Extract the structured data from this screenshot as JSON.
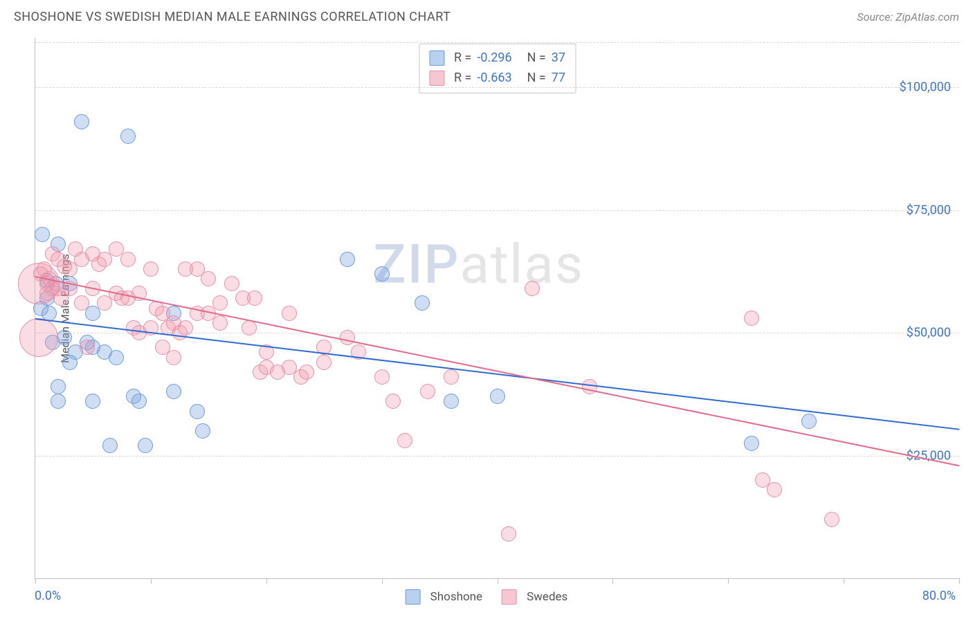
{
  "header": {
    "title": "SHOSHONE VS SWEDISH MEDIAN MALE EARNINGS CORRELATION CHART",
    "source": "Source: ZipAtlas.com"
  },
  "chart": {
    "type": "scatter",
    "ylabel": "Median Male Earnings",
    "xlim": [
      0,
      80
    ],
    "ylim": [
      0,
      110000
    ],
    "x_tick_positions": [
      0,
      10,
      20,
      30,
      40,
      50,
      60,
      70,
      80
    ],
    "x_min_label": "0.0%",
    "x_max_label": "80.0%",
    "y_gridlines": [
      25000,
      50000,
      75000,
      100000
    ],
    "y_labels": [
      "$25,000",
      "$50,000",
      "$75,000",
      "$100,000"
    ],
    "background_color": "#ffffff",
    "grid_color": "#d8d8d8",
    "axis_color": "#c0c0c0",
    "value_text_color": "#3b73d1",
    "point_radius": 11,
    "series": [
      {
        "name": "Shoshone",
        "fill_color": "rgba(120,160,220,0.35)",
        "stroke_color": "#6a9be0",
        "swatch_fill": "#b9d0ef",
        "swatch_border": "#6a9be0",
        "trend_color": "#2f69d2",
        "trend": {
          "x1": 0,
          "y1": 53000,
          "x2": 80,
          "y2": 30500
        },
        "R": "-0.296",
        "N": "37",
        "points": [
          [
            0.5,
            55000
          ],
          [
            0.6,
            70000
          ],
          [
            1,
            60500
          ],
          [
            1,
            57000
          ],
          [
            1.2,
            54000
          ],
          [
            1.5,
            48000
          ],
          [
            1.8,
            60000
          ],
          [
            2,
            68000
          ],
          [
            2,
            39000
          ],
          [
            2,
            36000
          ],
          [
            2.5,
            49000
          ],
          [
            3,
            60000
          ],
          [
            3,
            44000
          ],
          [
            3.5,
            46000
          ],
          [
            4,
            93000
          ],
          [
            4.5,
            48000
          ],
          [
            5,
            47000
          ],
          [
            5,
            54000
          ],
          [
            5,
            36000
          ],
          [
            6,
            46000
          ],
          [
            6.5,
            27000
          ],
          [
            7,
            45000
          ],
          [
            8,
            90000
          ],
          [
            8.5,
            37000
          ],
          [
            9,
            36000
          ],
          [
            9.5,
            27000
          ],
          [
            12,
            38000
          ],
          [
            12,
            54000
          ],
          [
            14,
            34000
          ],
          [
            14.5,
            30000
          ],
          [
            27,
            65000
          ],
          [
            30,
            62000
          ],
          [
            33.5,
            56000
          ],
          [
            36,
            36000
          ],
          [
            40,
            37000
          ],
          [
            62,
            27500
          ],
          [
            67,
            32000
          ]
        ]
      },
      {
        "name": "Swedes",
        "fill_color": "rgba(240,150,170,0.32)",
        "stroke_color": "#e98fa6",
        "swatch_fill": "#f6c6d2",
        "swatch_border": "#e98fa6",
        "trend_color": "#e26b8b",
        "trend": {
          "x1": 0,
          "y1": 61500,
          "x2": 80,
          "y2": 23000
        },
        "R": "-0.663",
        "N": "77",
        "points": [
          [
            0.3,
            60000,
            30
          ],
          [
            0.3,
            49000,
            28
          ],
          [
            0.5,
            62000
          ],
          [
            0.8,
            63000
          ],
          [
            1,
            60000
          ],
          [
            1,
            58000
          ],
          [
            1.2,
            61000
          ],
          [
            1.5,
            66000
          ],
          [
            1.5,
            59000
          ],
          [
            2,
            65000
          ],
          [
            2,
            59000
          ],
          [
            2.2,
            57000
          ],
          [
            2.5,
            63500
          ],
          [
            3,
            63000
          ],
          [
            3,
            59000
          ],
          [
            3.5,
            67000
          ],
          [
            4,
            56000
          ],
          [
            4,
            65000
          ],
          [
            4.5,
            47000
          ],
          [
            5,
            66000
          ],
          [
            5,
            59000
          ],
          [
            5.5,
            64000
          ],
          [
            6,
            65000
          ],
          [
            6,
            56000
          ],
          [
            7,
            67000
          ],
          [
            7,
            58000
          ],
          [
            7.5,
            57000
          ],
          [
            8,
            65000
          ],
          [
            8,
            57000
          ],
          [
            8.5,
            51000
          ],
          [
            9,
            50000
          ],
          [
            9,
            58000
          ],
          [
            10,
            63000
          ],
          [
            10,
            51000
          ],
          [
            10.5,
            55000
          ],
          [
            11,
            54000
          ],
          [
            11,
            47000
          ],
          [
            11.5,
            51000
          ],
          [
            12,
            52000
          ],
          [
            12,
            45000
          ],
          [
            12.5,
            50000
          ],
          [
            13,
            63000
          ],
          [
            13,
            51000
          ],
          [
            14,
            63000
          ],
          [
            14,
            54000
          ],
          [
            15,
            61000
          ],
          [
            15,
            54000
          ],
          [
            16,
            52000
          ],
          [
            16,
            56000
          ],
          [
            17,
            60000
          ],
          [
            18,
            57000
          ],
          [
            18.5,
            51000
          ],
          [
            19,
            57000
          ],
          [
            19.5,
            42000
          ],
          [
            20,
            46000
          ],
          [
            20,
            43000
          ],
          [
            21,
            42000
          ],
          [
            22,
            54000
          ],
          [
            22,
            43000
          ],
          [
            23,
            41000
          ],
          [
            23.5,
            42000
          ],
          [
            25,
            47000
          ],
          [
            25,
            44000
          ],
          [
            27,
            49000
          ],
          [
            28,
            46000
          ],
          [
            30,
            41000
          ],
          [
            31,
            36000
          ],
          [
            32,
            28000
          ],
          [
            34,
            38000
          ],
          [
            36,
            41000
          ],
          [
            43,
            59000
          ],
          [
            48,
            39000
          ],
          [
            41,
            9000
          ],
          [
            62,
            53000
          ],
          [
            64,
            18000
          ],
          [
            69,
            12000
          ],
          [
            63,
            20000
          ]
        ]
      }
    ]
  },
  "watermark": {
    "text_bold": "ZIP",
    "text_rest": "atlas"
  },
  "legend": {
    "label_a": "Shoshone",
    "label_b": "Swedes"
  }
}
